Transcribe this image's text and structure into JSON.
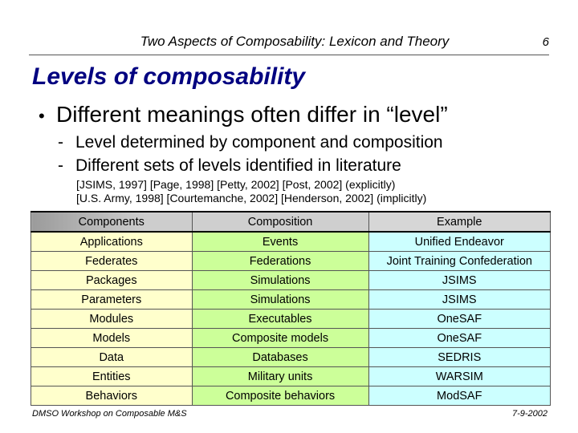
{
  "header": {
    "title": "Two Aspects of Composability:  Lexicon and Theory",
    "page_number": "6"
  },
  "slide": {
    "title": "Levels of composability",
    "bullet": "Different meanings often differ in “level”",
    "bullet_symbol": "•",
    "sub_bullets": [
      "Level determined by component and composition",
      "Different sets of levels identified in literature"
    ],
    "references": [
      "[JSIMS, 1997] [Page, 1998] [Petty, 2002] [Post, 2002] (explicitly)",
      "[U.S. Army, 1998] [Courtemanche, 2002] [Henderson, 2002] (implicitly)"
    ]
  },
  "table": {
    "headers": [
      "Components",
      "Composition",
      "Example"
    ],
    "rows": [
      [
        "Applications",
        "Events",
        "Unified Endeavor"
      ],
      [
        "Federates",
        "Federations",
        "Joint Training Confederation"
      ],
      [
        "Packages",
        "Simulations",
        "JSIMS"
      ],
      [
        "Parameters",
        "Simulations",
        "JSIMS"
      ],
      [
        "Modules",
        "Executables",
        "OneSAF"
      ],
      [
        "Models",
        "Composite models",
        "OneSAF"
      ],
      [
        "Data",
        "Databases",
        "SEDRIS"
      ],
      [
        "Entities",
        "Military units",
        "WARSIM"
      ],
      [
        "Behaviors",
        "Composite behaviors",
        "ModSAF"
      ]
    ],
    "colors": {
      "components": "#ffffcc",
      "composition": "#ccff99",
      "example": "#ccffff",
      "header": "#c8c8c8"
    }
  },
  "footer": {
    "left": "DMSO Workshop on Composable M&S",
    "right": "7-9-2002"
  },
  "colors": {
    "title": "#000080"
  }
}
